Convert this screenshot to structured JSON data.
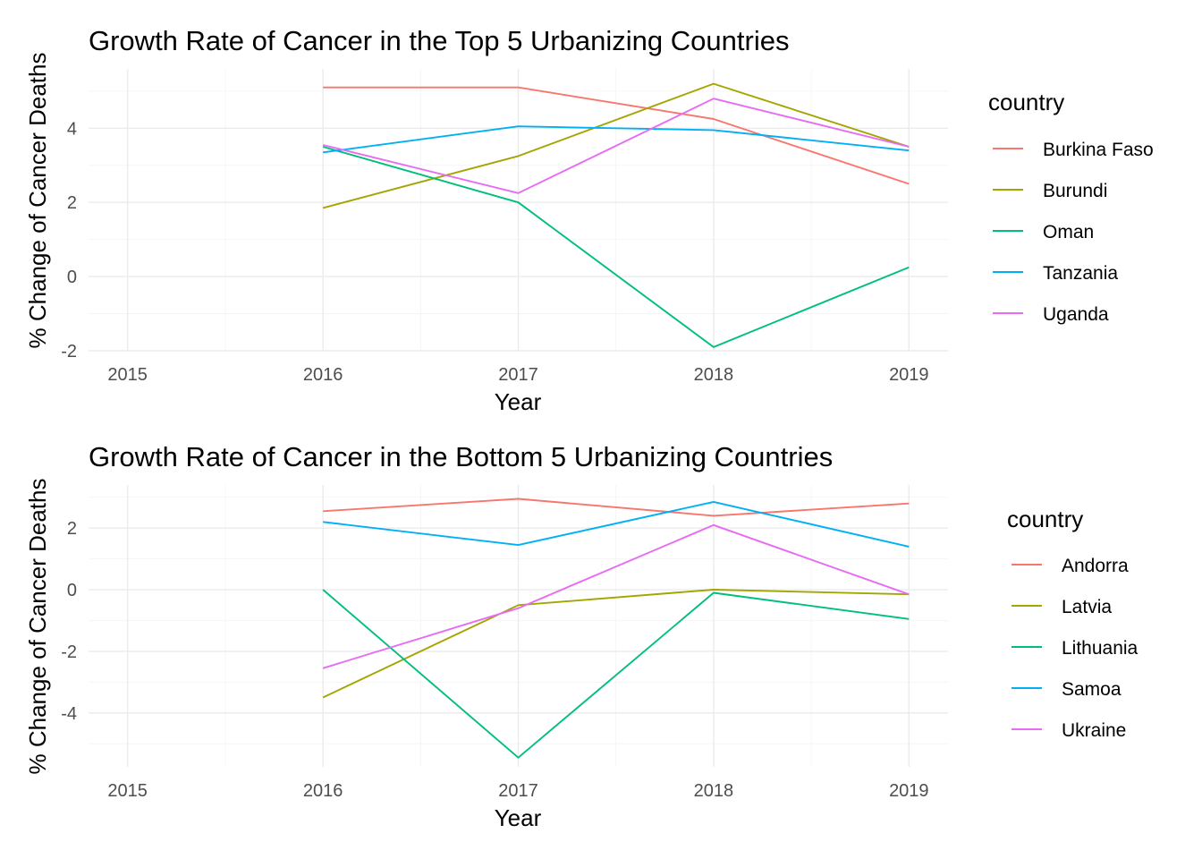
{
  "chart_data": [
    {
      "type": "line",
      "title": "Growth Rate of Cancer in the Top 5 Urbanizing Countries",
      "xlabel": "Year",
      "ylabel": "% Change of Cancer Deaths",
      "x_ticks": [
        "2015",
        "2016",
        "2017",
        "2018",
        "2019"
      ],
      "y_ticks": [
        "-2",
        "0",
        "2",
        "4"
      ],
      "y_tick_values": [
        -2,
        0,
        2,
        4
      ],
      "xlim": [
        2014.8,
        2019.2
      ],
      "ylim": [
        -2.0,
        5.6
      ],
      "grid": true,
      "legend_position": "right",
      "legend_title": "country",
      "x": [
        2016,
        2017,
        2018,
        2019
      ],
      "series": [
        {
          "name": "Burkina Faso",
          "color": "#F8766D",
          "values": [
            5.1,
            5.1,
            4.25,
            2.5
          ]
        },
        {
          "name": "Burundi",
          "color": "#A3A500",
          "values": [
            1.85,
            3.25,
            5.2,
            3.5
          ]
        },
        {
          "name": "Oman",
          "color": "#00BF7D",
          "values": [
            3.5,
            2.0,
            -1.9,
            0.25
          ]
        },
        {
          "name": "Tanzania",
          "color": "#00B0F6",
          "values": [
            3.35,
            4.05,
            3.95,
            3.4
          ]
        },
        {
          "name": "Uganda",
          "color": "#E76BF3",
          "values": [
            3.55,
            2.25,
            4.8,
            3.5
          ]
        }
      ]
    },
    {
      "type": "line",
      "title": "Growth Rate of Cancer in the Bottom 5 Urbanizing Countries",
      "xlabel": "Year",
      "ylabel": "% Change of Cancer Deaths",
      "x_ticks": [
        "2015",
        "2016",
        "2017",
        "2018",
        "2019"
      ],
      "y_ticks": [
        "-4",
        "-2",
        "0",
        "2"
      ],
      "y_tick_values": [
        -4,
        -2,
        0,
        2
      ],
      "xlim": [
        2014.8,
        2019.2
      ],
      "ylim": [
        -5.75,
        3.4
      ],
      "grid": true,
      "legend_position": "right",
      "legend_title": "country",
      "x": [
        2016,
        2017,
        2018,
        2019
      ],
      "series": [
        {
          "name": "Andorra",
          "color": "#F8766D",
          "values": [
            2.55,
            2.95,
            2.4,
            2.8
          ]
        },
        {
          "name": "Latvia",
          "color": "#A3A500",
          "values": [
            -3.5,
            -0.5,
            0.0,
            -0.15
          ]
        },
        {
          "name": "Lithuania",
          "color": "#00BF7D",
          "values": [
            0.0,
            -5.45,
            -0.1,
            -0.95
          ]
        },
        {
          "name": "Samoa",
          "color": "#00B0F6",
          "values": [
            2.2,
            1.45,
            2.85,
            1.4
          ]
        },
        {
          "name": "Ukraine",
          "color": "#E76BF3",
          "values": [
            -2.55,
            -0.6,
            2.1,
            -0.15
          ]
        }
      ]
    }
  ]
}
